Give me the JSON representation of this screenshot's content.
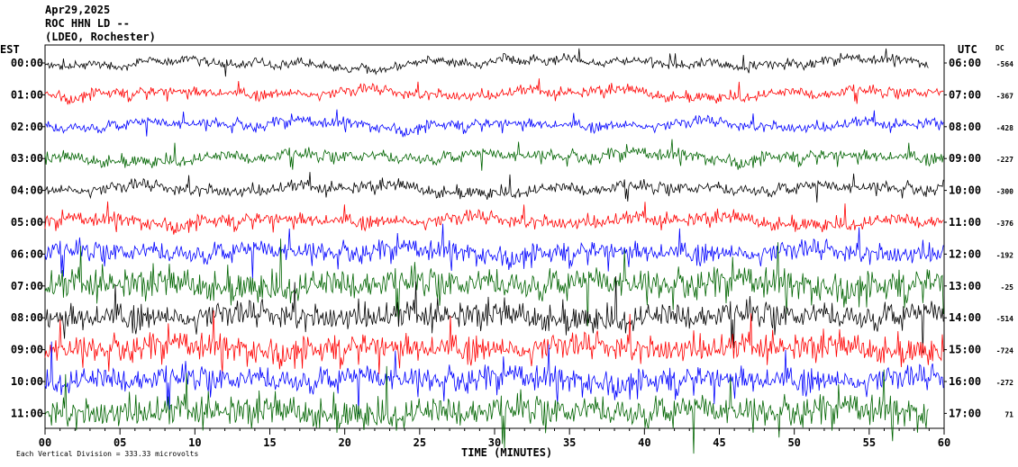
{
  "header": {
    "date": "Apr29,2025",
    "station": "ROC HHN LD --",
    "location": "(LDEO, Rochester)"
  },
  "left_axis_title": "EST",
  "right_axis_title": "UTC",
  "dc_title": "DC",
  "footer_text": "Each Vertical Division = 333.33 microvolts",
  "chart_data": {
    "type": "line",
    "xlabel": "TIME (MINUTES)",
    "xlim": [
      0,
      60
    ],
    "x_ticks": [
      "00",
      "05",
      "10",
      "15",
      "20",
      "25",
      "30",
      "35",
      "40",
      "45",
      "50",
      "55",
      "60"
    ],
    "x_tick_values": [
      0,
      5,
      10,
      15,
      20,
      25,
      30,
      35,
      40,
      45,
      50,
      55,
      60
    ],
    "rows": [
      {
        "est": "00:00",
        "utc": "06:00",
        "dc": "-564",
        "color": "#000000",
        "end_minute": 59
      },
      {
        "est": "01:00",
        "utc": "07:00",
        "dc": "-367",
        "color": "#ff0000",
        "end_minute": 60
      },
      {
        "est": "02:00",
        "utc": "08:00",
        "dc": "-428",
        "color": "#0000ff",
        "end_minute": 60
      },
      {
        "est": "03:00",
        "utc": "09:00",
        "dc": "-227",
        "color": "#006400",
        "end_minute": 60
      },
      {
        "est": "04:00",
        "utc": "10:00",
        "dc": "-300",
        "color": "#000000",
        "end_minute": 60
      },
      {
        "est": "05:00",
        "utc": "11:00",
        "dc": "-376",
        "color": "#ff0000",
        "end_minute": 60
      },
      {
        "est": "06:00",
        "utc": "12:00",
        "dc": "-192",
        "color": "#0000ff",
        "end_minute": 60
      },
      {
        "est": "07:00",
        "utc": "13:00",
        "dc": "-25",
        "color": "#006400",
        "end_minute": 60
      },
      {
        "est": "08:00",
        "utc": "14:00",
        "dc": "-514",
        "color": "#000000",
        "end_minute": 60
      },
      {
        "est": "09:00",
        "utc": "15:00",
        "dc": "-724",
        "color": "#ff0000",
        "end_minute": 60
      },
      {
        "est": "10:00",
        "utc": "16:00",
        "dc": "-272",
        "color": "#0000ff",
        "end_minute": 60
      },
      {
        "est": "11:00",
        "utc": "17:00",
        "dc": "71",
        "color": "#006400",
        "end_minute": 59
      }
    ],
    "noise_amplitude": [
      0.25,
      0.3,
      0.3,
      0.35,
      0.35,
      0.4,
      0.6,
      0.9,
      0.8,
      0.8,
      0.75,
      0.9
    ]
  }
}
